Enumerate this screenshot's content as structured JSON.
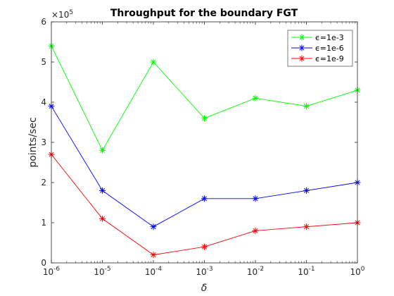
{
  "chart_data": {
    "type": "line",
    "title": "Throughput for the boundary FGT",
    "xlabel": "δ",
    "ylabel": "points/sec",
    "x_scale": "log",
    "x": [
      1e-06,
      1e-05,
      0.0001,
      0.001,
      0.01,
      0.1,
      1
    ],
    "xlim": [
      1e-06,
      1
    ],
    "ylim": [
      0,
      600000
    ],
    "x_tick_labels": [
      {
        "base": "10",
        "exp": "-6"
      },
      {
        "base": "10",
        "exp": "-5"
      },
      {
        "base": "10",
        "exp": "-4"
      },
      {
        "base": "10",
        "exp": "-3"
      },
      {
        "base": "10",
        "exp": "-2"
      },
      {
        "base": "10",
        "exp": "-1"
      },
      {
        "base": "10",
        "exp": "0"
      }
    ],
    "y_tick_labels": [
      "0",
      "1",
      "2",
      "3",
      "4",
      "5",
      "6"
    ],
    "y_multiplier": {
      "base": "×10",
      "exp": "5"
    },
    "grid": false,
    "legend_position": "top-right",
    "series": [
      {
        "name": "ϵ=1e-3",
        "color": "#00ff00",
        "marker": "asterisk",
        "values": [
          540000,
          280000,
          500000,
          360000,
          410000,
          390000,
          430000
        ]
      },
      {
        "name": "ϵ=1e-6",
        "color": "#0000ff",
        "marker": "asterisk",
        "values": [
          390000,
          180000,
          90000,
          160000,
          160000,
          180000,
          200000
        ]
      },
      {
        "name": "ϵ=1e-9",
        "color": "#ff0000",
        "marker": "asterisk",
        "values": [
          270000,
          110000,
          20000,
          40000,
          80000,
          90000,
          100000
        ]
      }
    ]
  }
}
